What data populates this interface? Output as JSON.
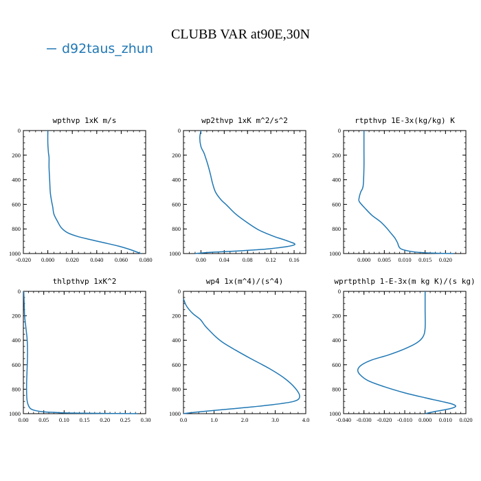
{
  "figure": {
    "title": "CLUBB VAR at90E,30N",
    "legend_label": "d92taus_zhun",
    "series_color": "#1f77b4"
  },
  "chart_data": [
    {
      "type": "line",
      "title": "wpthvp   1xK  m/s",
      "xlim": [
        -0.02,
        0.08
      ],
      "ylim": [
        1000,
        0
      ],
      "xticks": [
        "-0.020",
        "0.000",
        "0.020",
        "0.040",
        "0.060",
        "0.080"
      ],
      "yticks": [
        "0",
        "200",
        "400",
        "600",
        "800",
        "1000"
      ],
      "series": [
        {
          "x": [
            0.0,
            0.0,
            0.0005,
            0.001,
            0.001,
            0.0015,
            0.002,
            0.003,
            0.004,
            0.005,
            0.008,
            0.011,
            0.016,
            0.024,
            0.034,
            0.045,
            0.058,
            0.068,
            0.076
          ],
          "y": [
            0,
            100,
            180,
            220,
            300,
            400,
            500,
            570,
            620,
            680,
            740,
            790,
            830,
            860,
            885,
            910,
            940,
            970,
            1000
          ]
        }
      ]
    },
    {
      "type": "line",
      "title": "wp2thvp   1xK  m^2/s^2",
      "xlim": [
        -0.03,
        0.18
      ],
      "ylim": [
        1000,
        0
      ],
      "xticks": [
        "0.00",
        "0.04",
        "0.08",
        "0.12",
        "0.16"
      ],
      "yticks": [
        "0",
        "200",
        "400",
        "600",
        "800",
        "1000"
      ],
      "series": [
        {
          "x": [
            0.0,
            -0.002,
            0.0,
            0.005,
            0.008,
            0.012,
            0.016,
            0.02,
            0.025,
            0.034,
            0.045,
            0.06,
            0.08,
            0.1,
            0.125,
            0.15,
            0.16,
            0.12,
            0.06,
            0.015,
            -0.01
          ],
          "y": [
            0,
            60,
            130,
            180,
            220,
            280,
            350,
            430,
            500,
            560,
            610,
            680,
            750,
            810,
            860,
            900,
            930,
            960,
            980,
            990,
            1000
          ]
        }
      ]
    },
    {
      "type": "line",
      "title": "rtpthvp   1E-3x(kg/kg)  K",
      "xlim": [
        -0.005,
        0.025
      ],
      "ylim": [
        1000,
        0
      ],
      "xticks": [
        "0.000",
        "0.005",
        "0.010",
        "0.015",
        "0.020"
      ],
      "yticks": [
        "0",
        "200",
        "400",
        "600",
        "800",
        "1000"
      ],
      "series": [
        {
          "x": [
            0.0,
            0.0,
            0.0,
            -0.0002,
            -0.0008,
            -0.0012,
            -0.0011,
            0.0005,
            0.002,
            0.004,
            0.0055,
            0.0065,
            0.0075,
            0.0082,
            0.009,
            0.012,
            0.016,
            0.022
          ],
          "y": [
            0,
            150,
            300,
            450,
            500,
            550,
            580,
            640,
            690,
            740,
            790,
            830,
            870,
            910,
            960,
            985,
            995,
            1000
          ]
        }
      ]
    },
    {
      "type": "line",
      "title": "thlpthvp   1xK^2",
      "xlim": [
        0.0,
        0.3
      ],
      "ylim": [
        1000,
        0
      ],
      "xticks": [
        "0.00",
        "0.05",
        "0.10",
        "0.15",
        "0.20",
        "0.25",
        "0.30"
      ],
      "yticks": [
        "0",
        "200",
        "400",
        "600",
        "800",
        "1000"
      ],
      "series": [
        {
          "x": [
            0.001,
            0.002,
            0.003,
            0.005,
            0.007,
            0.009,
            0.01,
            0.01,
            0.009,
            0.008,
            0.008,
            0.009,
            0.012,
            0.018,
            0.03,
            0.05,
            0.08,
            0.12,
            0.28
          ],
          "y": [
            0,
            100,
            200,
            260,
            320,
            380,
            450,
            550,
            650,
            750,
            830,
            890,
            930,
            960,
            975,
            985,
            990,
            995,
            1000
          ]
        }
      ]
    },
    {
      "type": "line",
      "title": "wp4   1x(m^4)/(s^4)",
      "xlim": [
        0.0,
        4.0
      ],
      "ylim": [
        1000,
        0
      ],
      "xticks": [
        "0.0",
        "1.0",
        "2.0",
        "3.0",
        "4.0"
      ],
      "yticks": [
        "0",
        "200",
        "400",
        "600",
        "800",
        "1000"
      ],
      "series": [
        {
          "x": [
            0.0,
            0.1,
            0.3,
            0.55,
            0.7,
            0.85,
            1.05,
            1.3,
            1.7,
            2.2,
            2.8,
            3.3,
            3.65,
            3.8,
            3.6,
            2.8,
            1.6,
            0.5,
            0.0
          ],
          "y": [
            60,
            120,
            180,
            230,
            280,
            320,
            370,
            420,
            480,
            550,
            630,
            710,
            790,
            860,
            900,
            930,
            960,
            985,
            1000
          ]
        }
      ]
    },
    {
      "type": "line",
      "title": "wprtpthlp   1-E-3x(m kg K)/(s kg)",
      "xlim": [
        -0.04,
        0.02
      ],
      "ylim": [
        1000,
        0
      ],
      "xticks": [
        "-0.040",
        "-0.030",
        "-0.020",
        "-0.010",
        "0.000",
        "0.010",
        "0.020"
      ],
      "yticks": [
        "0",
        "200",
        "400",
        "600",
        "800",
        "1000"
      ],
      "series": [
        {
          "x": [
            0.0,
            0.0,
            0.0,
            -0.001,
            -0.004,
            -0.01,
            -0.018,
            -0.026,
            -0.031,
            -0.033,
            -0.032,
            -0.028,
            -0.02,
            -0.01,
            0.0,
            0.008,
            0.013,
            0.015,
            0.012,
            0.004,
            0.0
          ],
          "y": [
            0,
            150,
            300,
            370,
            420,
            470,
            520,
            560,
            600,
            640,
            680,
            730,
            780,
            830,
            870,
            900,
            920,
            940,
            960,
            985,
            1000
          ]
        }
      ]
    }
  ]
}
